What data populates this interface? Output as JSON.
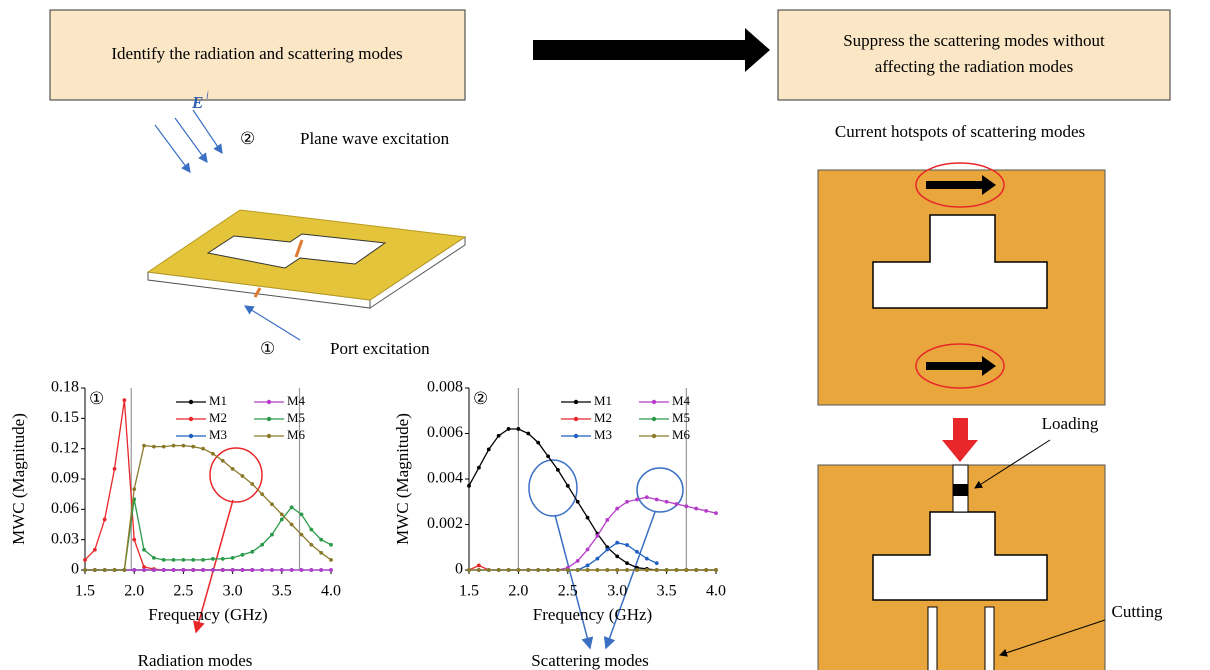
{
  "boxes": {
    "left": "Identify the radiation and scattering modes",
    "right": [
      "Suppress the scattering modes without",
      "affecting the radiation modes"
    ]
  },
  "labels": {
    "e_field": "E",
    "e_sup": "i",
    "mark2": "②",
    "plane_wave": "Plane wave excitation",
    "mark1": "①",
    "port": "Port excitation",
    "hotspots": "Current hotspots of scattering modes",
    "loading": "Loading",
    "cutting": "Cutting",
    "radiation": "Radiation modes",
    "scattering": "Scattering modes"
  },
  "charts": [
    {
      "type": "line",
      "panel": "①",
      "xlabel": "Frequency (GHz)",
      "ylabel": "MWC (Magnitude)",
      "xlim": [
        1.5,
        4
      ],
      "ylim": [
        0,
        0.18
      ],
      "xticks": [
        1.5,
        {
          "value": 2,
          "label": "2.0"
        },
        2.5,
        {
          "value": 3,
          "label": "3.0"
        },
        3.5,
        {
          "value": 4,
          "label": "4.0"
        }
      ],
      "yticks": [
        0,
        0.03,
        0.06,
        0.09,
        0.12,
        0.15,
        0.18
      ],
      "reference_lines": [
        1.97,
        3.68
      ],
      "x": [
        1.5,
        1.6,
        1.7,
        1.8,
        1.9,
        2.0,
        2.1,
        2.2,
        2.3,
        2.4,
        2.5,
        2.6,
        2.7,
        2.8,
        2.9,
        3.0,
        3.1,
        3.2,
        3.3,
        3.4,
        3.5,
        3.6,
        3.7,
        3.8,
        3.9,
        4.0
      ],
      "series": [
        {
          "name": "M1",
          "color": "#000000",
          "values": [
            0,
            0,
            0,
            0,
            0,
            0,
            0,
            0,
            0,
            0,
            0,
            0,
            0,
            0,
            0,
            0,
            0,
            0,
            null,
            null,
            null,
            null,
            null,
            null,
            null,
            null
          ]
        },
        {
          "name": "M2",
          "color": "#e8272a",
          "values": [
            0.01,
            0.02,
            0.05,
            0.1,
            0.168,
            0.03,
            0.003,
            0.001,
            0,
            0,
            0,
            0,
            0,
            0,
            0,
            0,
            0,
            0,
            null,
            null,
            null,
            null,
            null,
            null,
            null,
            null
          ]
        },
        {
          "name": "M3",
          "color": "#1f5fbf",
          "values": [
            0,
            0,
            0,
            0,
            0,
            0,
            0,
            0,
            0,
            0,
            0,
            0,
            0,
            0,
            0,
            0,
            0,
            0,
            0,
            0,
            0,
            0,
            0,
            0,
            0,
            0
          ]
        },
        {
          "name": "M4",
          "color": "#b43cc8",
          "values": [
            0,
            0,
            0,
            0,
            0,
            0,
            0,
            0,
            0,
            0,
            0,
            0,
            0,
            0,
            0,
            0,
            0,
            0,
            0,
            0,
            0,
            0,
            0,
            0,
            0,
            0
          ]
        },
        {
          "name": "M5",
          "color": "#2a9a4a",
          "values": [
            0,
            0,
            0,
            0,
            0,
            0.07,
            0.02,
            0.012,
            0.01,
            0.01,
            0.01,
            0.01,
            0.01,
            0.011,
            0.011,
            0.012,
            0.015,
            0.018,
            0.025,
            0.035,
            0.05,
            0.062,
            0.055,
            0.04,
            0.03,
            0.025
          ]
        },
        {
          "name": "M6",
          "color": "#8a7a2a",
          "values": [
            0,
            0,
            0,
            0,
            0,
            0.08,
            0.123,
            0.122,
            0.122,
            0.123,
            0.123,
            0.122,
            0.12,
            0.115,
            0.108,
            0.1,
            0.093,
            0.085,
            0.075,
            0.065,
            0.055,
            0.045,
            0.035,
            0.025,
            0.017,
            0.01
          ]
        }
      ]
    },
    {
      "type": "line",
      "panel": "②",
      "xlabel": "Frequency (GHz)",
      "ylabel": "MWC (Magnitude)",
      "xlim": [
        1.5,
        4
      ],
      "ylim": [
        0,
        0.008
      ],
      "xticks": [
        1.5,
        {
          "value": 2,
          "label": "2.0"
        },
        2.5,
        {
          "value": 3,
          "label": "3.0"
        },
        3.5,
        {
          "value": 4,
          "label": "4.0"
        }
      ],
      "yticks": [
        0,
        0.002,
        0.004,
        0.006,
        0.008
      ],
      "reference_lines": [
        2,
        3.7
      ],
      "x": [
        1.5,
        1.6,
        1.7,
        1.8,
        1.9,
        2.0,
        2.1,
        2.2,
        2.3,
        2.4,
        2.5,
        2.6,
        2.7,
        2.8,
        2.9,
        3.0,
        3.1,
        3.2,
        3.3,
        3.4,
        3.5,
        3.6,
        3.7,
        3.8,
        3.9,
        4.0
      ],
      "series": [
        {
          "name": "M1",
          "color": "#000000",
          "values": [
            0.0037,
            0.0045,
            0.0053,
            0.0059,
            0.0062,
            0.0062,
            0.006,
            0.0056,
            0.005,
            0.0044,
            0.0037,
            0.003,
            0.0023,
            0.0016,
            0.001,
            0.0006,
            0.0003,
            0.0001,
            5e-05,
            0,
            0,
            0,
            0,
            0,
            0,
            0
          ]
        },
        {
          "name": "M2",
          "color": "#e8272a",
          "values": [
            0,
            0.0002,
            0,
            0,
            0,
            0,
            0,
            0,
            0,
            0,
            0,
            0,
            0,
            0,
            0,
            0,
            0,
            0,
            0,
            0,
            0,
            0,
            0,
            0,
            0,
            0
          ]
        },
        {
          "name": "M3",
          "color": "#1f5fbf",
          "values": [
            0,
            0,
            0,
            0,
            0,
            0,
            0,
            0,
            0,
            0,
            0,
            0,
            0.0002,
            0.0005,
            0.0009,
            0.0012,
            0.0011,
            0.0008,
            0.0005,
            0.0003,
            null,
            null,
            null,
            null,
            null,
            null
          ]
        },
        {
          "name": "M4",
          "color": "#b43cc8",
          "values": [
            0,
            0,
            0,
            0,
            0,
            0,
            0,
            0,
            0,
            0,
            0.0001,
            0.0004,
            0.0009,
            0.0015,
            0.0022,
            0.0027,
            0.003,
            0.0031,
            0.0032,
            0.0031,
            0.003,
            0.0029,
            0.0028,
            0.0027,
            0.0026,
            0.0025
          ]
        },
        {
          "name": "M5",
          "color": "#2a9a4a",
          "values": [
            0,
            0,
            0,
            0,
            0,
            0,
            0,
            0,
            0,
            0,
            0,
            0,
            0,
            0,
            0,
            0,
            0,
            0,
            0,
            0,
            0,
            0,
            0,
            0,
            0,
            0
          ]
        },
        {
          "name": "M6",
          "color": "#8a7a2a",
          "values": [
            0,
            0,
            0,
            0,
            0,
            0,
            0,
            0,
            0,
            0,
            0,
            0,
            0,
            0,
            0,
            0,
            0,
            0,
            0,
            0,
            0,
            0,
            0,
            0,
            0,
            0
          ]
        }
      ]
    }
  ]
}
